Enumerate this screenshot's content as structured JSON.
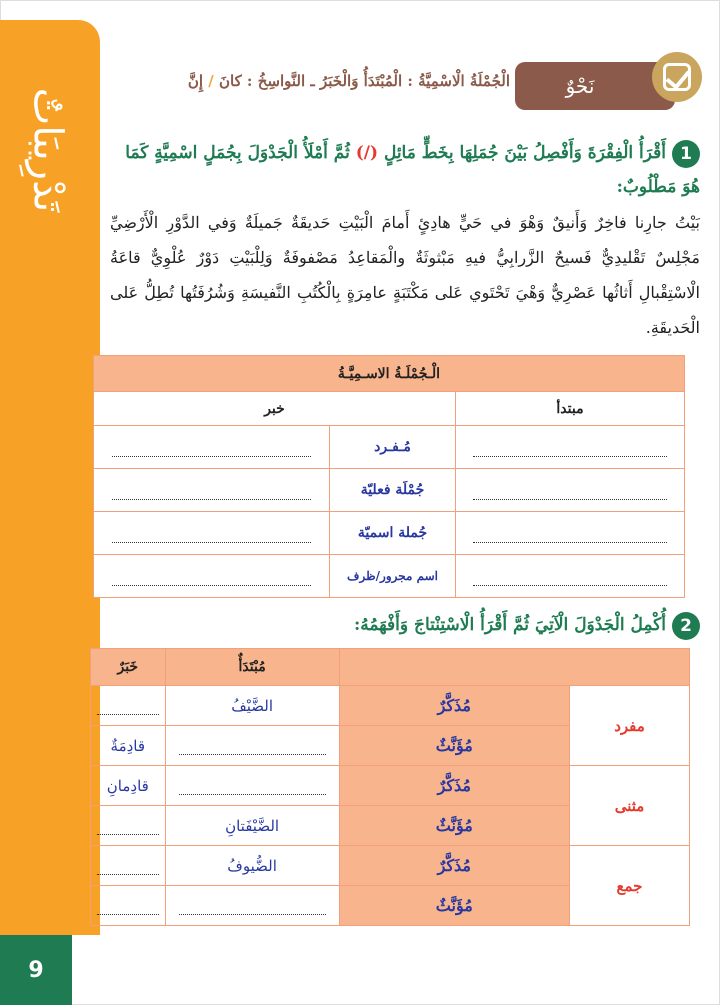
{
  "sidebar": {
    "title": "تَدْرِيبَاتٌ",
    "page_number": "9"
  },
  "header": {
    "section_label": "نَحْوٌ",
    "topic_part1": "الْجُمْلَةُ الْاسْمِيَّةُ : الْمُبْتَدَأُ وَالْخَبَرُ ـ النَّواسِخُ : كانَ ",
    "topic_slash": "/",
    "topic_part2": " إِنَّ"
  },
  "q1": {
    "number": "1",
    "text_a": "أَقْرَأُ الْفِقْرَةَ وَأَفْصِلُ بَيْنَ جُمَلِهَا بِخَطٍّ مَائِلٍ ",
    "mark": "(/)",
    "text_b": " ثُمَّ أَمْلَأُ الْجَدْوَلَ بِجُمَلٍ اسْمِيَّةٍ كَمَا هُوَ مَطْلُوبٌ:"
  },
  "paragraph": "بَيْتُ جارِنا فاخِرٌ وَأَنيقٌ وَهْوَ في حَيٍّ هادِئٍ أَمامَ الْبَيْتِ حَديقَةٌ جَميلَةٌ وَفي الدَّوْرِ الْأَرْضِيِّ مَجْلِسٌ تَقْليدِيٌّ فَسيحٌ الزَّرابِيُّ فيهِ مَبْثوثَةٌ والْمَقاعِدُ مَصْفوفَةٌ وَلِلْبَيْتِ دَوْرٌ عُلْوِيٌّ قاعَةُ الْاسْتِقْبالِ أَثاثُها عَصْرِيٌّ وَهْيَ تَحْتَوي عَلى مَكْتَبَةٍ عامِرَةٍ بِالْكُتُبِ النَّفيسَةِ وَشُرُفَتُها تُطِلُّ عَلى الْحَديقَةِ.",
  "table1": {
    "title": "الْـجُمْلَـةُ الاسـمِيَّـةُ",
    "col_mubtada": "مبتدأ",
    "col_khabar": "خبر",
    "rows": [
      "مُـفـرد",
      "جُمْلَة فعليّة",
      "جُملة اسميّة",
      "اسم مجرور/ظرف"
    ]
  },
  "q2": {
    "number": "2",
    "text": "أُكْمِلُ الْجَدْوَلَ الْآتِيَ ثُمَّ أَقْرَأُ الْاسْتِنْتاجَ وَأَفْهَمُهُ:"
  },
  "table2": {
    "col_mubtada": "مُبْتَدَأٌ",
    "col_khabar": "خَبَرٌ",
    "groups": [
      "مفرد",
      "مثنى",
      "جمع"
    ],
    "rows": [
      {
        "gender": "مُذَكَّرٌ",
        "mubtada": "الضَّيْفُ",
        "khabar": ""
      },
      {
        "gender": "مُؤَنَّثٌ",
        "mubtada": "",
        "khabar": "قادِمَةٌ"
      },
      {
        "gender": "مُذَكَّرٌ",
        "mubtada": "",
        "khabar": "قادِمانِ"
      },
      {
        "gender": "مُؤَنَّثٌ",
        "mubtada": "الضَّيْفَتانِ",
        "khabar": ""
      },
      {
        "gender": "مُذَكَّرٌ",
        "mubtada": "الضُّيوفُ",
        "khabar": ""
      },
      {
        "gender": "مُؤَنَّثٌ",
        "mubtada": "",
        "khabar": ""
      }
    ]
  },
  "colors": {
    "orange": "#f7a226",
    "green": "#1f7c52",
    "brown": "#8b5a4a",
    "salmon": "#f8b48c",
    "blue": "#2838a0",
    "red": "#e53b2f"
  }
}
